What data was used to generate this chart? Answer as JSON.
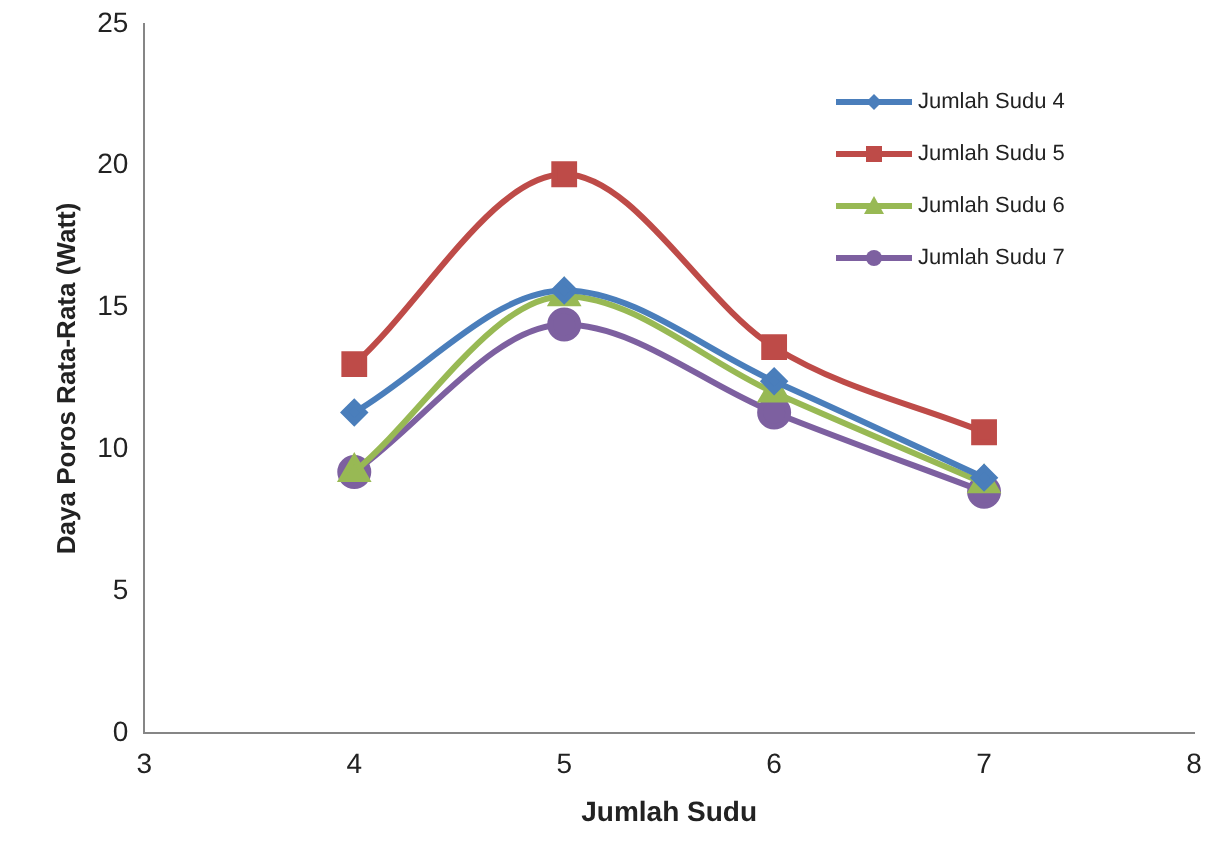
{
  "chart_data": {
    "type": "line",
    "xlabel": "Jumlah Sudu",
    "ylabel": "Daya Poros Rata-Rata (Watt)",
    "x": [
      4,
      5,
      6,
      7
    ],
    "series": [
      {
        "name": "Jumlah Sudu 4",
        "color": "#4a7ebb",
        "marker": "diamond",
        "values": [
          11.3,
          15.6,
          12.4,
          9.0
        ]
      },
      {
        "name": "Jumlah Sudu 5",
        "color": "#be4b48",
        "marker": "square",
        "values": [
          13.0,
          19.7,
          13.6,
          10.6
        ]
      },
      {
        "name": "Jumlah Sudu 6",
        "color": "#98b954",
        "marker": "triangle",
        "values": [
          9.2,
          15.4,
          12.0,
          8.8
        ]
      },
      {
        "name": "Jumlah Sudu 7",
        "color": "#7d60a0",
        "marker": "circle",
        "values": [
          9.2,
          14.4,
          11.3,
          8.5
        ]
      }
    ],
    "xlim": [
      3,
      8
    ],
    "xticks": [
      3,
      4,
      5,
      6,
      7,
      8
    ],
    "ylim": [
      0,
      25
    ],
    "yticks": [
      0,
      5,
      10,
      15,
      20,
      25
    ],
    "grid": false,
    "legend": "top right"
  }
}
